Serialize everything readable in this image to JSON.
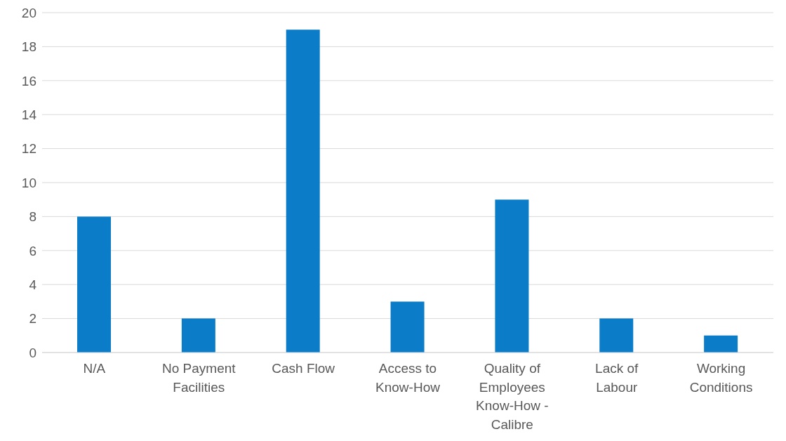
{
  "chart_data": {
    "type": "bar",
    "categories": [
      "N/A",
      "No Payment Facilities",
      "Cash Flow",
      "Access to Know-How",
      "Quality of Employees Know-How - Calibre",
      "Lack of Labour",
      "Working Conditions"
    ],
    "values": [
      8,
      2,
      19,
      3,
      9,
      2,
      1
    ],
    "color": "#0a7cc8",
    "ylim": [
      0,
      20
    ],
    "yticks": [
      0,
      2,
      4,
      6,
      8,
      10,
      12,
      14,
      16,
      18,
      20
    ],
    "grid": "y"
  }
}
